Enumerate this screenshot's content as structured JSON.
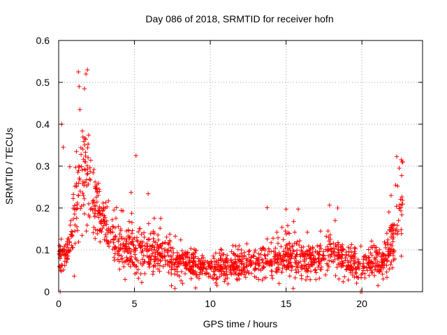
{
  "chart_data": {
    "type": "scatter",
    "title": "Day 086 of 2018, SRMTID for receiver hofn",
    "xlabel": "GPS time / hours",
    "ylabel": "SRMTID / TECUs",
    "xlim": [
      0,
      24
    ],
    "ylim": [
      0,
      0.6
    ],
    "xticks": [
      0,
      5,
      10,
      15,
      20
    ],
    "yticks": [
      0,
      0.1,
      0.2,
      0.3,
      0.4,
      0.5,
      0.6
    ],
    "xtick_labels": [
      "0",
      "5",
      "10",
      "15",
      "20"
    ],
    "ytick_labels": [
      "0",
      "0.1",
      "0.2",
      "0.3",
      "0.4",
      "0.5",
      "0.6"
    ],
    "grid": true,
    "marker": "+",
    "color": "#ff0000",
    "generation_note_hidden": false,
    "series": [
      {
        "name": "SRMTID",
        "envelope": [
          {
            "t": 0.0,
            "mean": 0.09,
            "spread": 0.05
          },
          {
            "t": 0.5,
            "mean": 0.08,
            "spread": 0.03
          },
          {
            "t": 1.0,
            "mean": 0.15,
            "spread": 0.1
          },
          {
            "t": 1.5,
            "mean": 0.3,
            "spread": 0.12
          },
          {
            "t": 2.0,
            "mean": 0.25,
            "spread": 0.1
          },
          {
            "t": 2.5,
            "mean": 0.2,
            "spread": 0.08
          },
          {
            "t": 3.0,
            "mean": 0.16,
            "spread": 0.07
          },
          {
            "t": 3.5,
            "mean": 0.13,
            "spread": 0.05
          },
          {
            "t": 4.0,
            "mean": 0.11,
            "spread": 0.05
          },
          {
            "t": 5.0,
            "mean": 0.09,
            "spread": 0.05
          },
          {
            "t": 6.0,
            "mean": 0.1,
            "spread": 0.05
          },
          {
            "t": 7.0,
            "mean": 0.08,
            "spread": 0.04
          },
          {
            "t": 8.0,
            "mean": 0.07,
            "spread": 0.03
          },
          {
            "t": 9.0,
            "mean": 0.065,
            "spread": 0.03
          },
          {
            "t": 10.0,
            "mean": 0.055,
            "spread": 0.025
          },
          {
            "t": 11.0,
            "mean": 0.06,
            "spread": 0.03
          },
          {
            "t": 12.0,
            "mean": 0.065,
            "spread": 0.03
          },
          {
            "t": 13.0,
            "mean": 0.07,
            "spread": 0.035
          },
          {
            "t": 14.0,
            "mean": 0.075,
            "spread": 0.035
          },
          {
            "t": 15.0,
            "mean": 0.085,
            "spread": 0.04
          },
          {
            "t": 16.0,
            "mean": 0.08,
            "spread": 0.04
          },
          {
            "t": 17.0,
            "mean": 0.075,
            "spread": 0.035
          },
          {
            "t": 18.0,
            "mean": 0.1,
            "spread": 0.04
          },
          {
            "t": 19.0,
            "mean": 0.07,
            "spread": 0.03
          },
          {
            "t": 20.0,
            "mean": 0.06,
            "spread": 0.03
          },
          {
            "t": 21.0,
            "mean": 0.07,
            "spread": 0.04
          },
          {
            "t": 21.5,
            "mean": 0.08,
            "spread": 0.05
          },
          {
            "t": 22.0,
            "mean": 0.12,
            "spread": 0.08
          },
          {
            "t": 22.5,
            "mean": 0.2,
            "spread": 0.1
          },
          {
            "t": 22.7,
            "mean": 0.2,
            "spread": 0.1
          }
        ],
        "point_count": 1600,
        "notable_points": [
          {
            "x": 1.3,
            "y": 0.525
          },
          {
            "x": 1.9,
            "y": 0.53
          },
          {
            "x": 1.8,
            "y": 0.52
          },
          {
            "x": 1.35,
            "y": 0.49
          },
          {
            "x": 1.7,
            "y": 0.485
          },
          {
            "x": 1.4,
            "y": 0.435
          },
          {
            "x": 0.2,
            "y": 0.4
          },
          {
            "x": 5.1,
            "y": 0.325
          },
          {
            "x": 0.3,
            "y": 0.345
          },
          {
            "x": 22.6,
            "y": 0.315
          },
          {
            "x": 22.7,
            "y": 0.31
          },
          {
            "x": 15.8,
            "y": 0.197
          },
          {
            "x": 0.1,
            "y": 0.0
          },
          {
            "x": 19.9,
            "y": 0.0
          },
          {
            "x": 20.0,
            "y": 0.0
          },
          {
            "x": 0.05,
            "y": 0.11
          }
        ]
      }
    ]
  }
}
